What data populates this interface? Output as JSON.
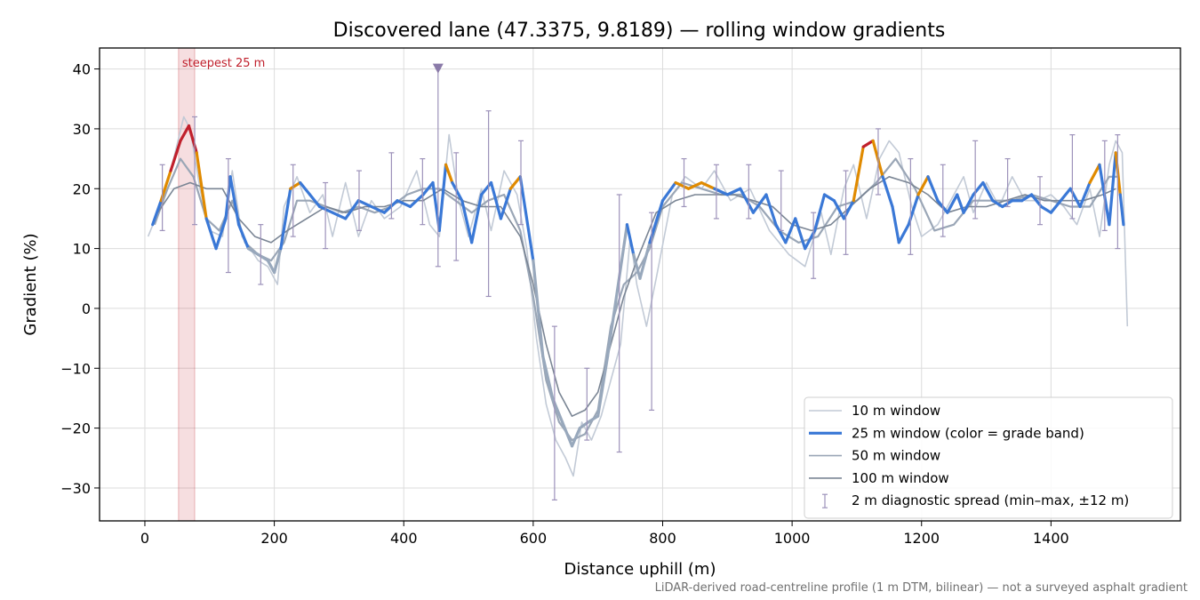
{
  "chart_data": {
    "type": "line",
    "title": "Discovered lane (47.3375, 9.8189) — rolling window gradients",
    "xlabel": "Distance uphill (m)",
    "ylabel": "Gradient (%)",
    "xlim": [
      -70,
      1600
    ],
    "ylim": [
      -35.5,
      43.5
    ],
    "x_ticks": [
      0,
      200,
      400,
      600,
      800,
      1000,
      1200,
      1400
    ],
    "y_ticks": [
      -30,
      -20,
      -10,
      0,
      10,
      20,
      30,
      40
    ],
    "x_tick_labels": [
      "0",
      "200",
      "400",
      "600",
      "800",
      "1000",
      "1200",
      "1400"
    ],
    "y_tick_labels": [
      "−30",
      "−20",
      "−10",
      "0",
      "10",
      "20",
      "30",
      "40"
    ],
    "grid": true,
    "legend_position": "lower-right",
    "footnote": "LiDAR-derived road-centreline profile (1 m DTM, bilinear) — not a surveyed asphalt gradient",
    "steepest_band": {
      "x_start": 52,
      "x_end": 77,
      "label": "steepest 25 m",
      "color": "#c0202c"
    },
    "peak_marker": {
      "x": 453,
      "y": 40
    },
    "grade_band_colors": {
      "below_10": "#98a8bc",
      "10_to_20": "#3a78d6",
      "20_to_25": "#e08a00",
      "above_25": "#c0202c"
    },
    "legend": [
      {
        "label": "10 m window",
        "color": "#c2cad6",
        "kind": "line"
      },
      {
        "label": "25 m window (color = grade band)",
        "color": "#3a78d6",
        "kind": "thick-line"
      },
      {
        "label": "50 m window",
        "color": "#9aa6b6",
        "kind": "line"
      },
      {
        "label": "100 m window",
        "color": "#7a8594",
        "kind": "line"
      },
      {
        "label": "2 m diagnostic spread (min–max, ±12 m)",
        "color": "#9d92ba",
        "kind": "errorbar"
      }
    ],
    "series": [
      {
        "name": "10 m window",
        "color": "#c2cad6",
        "x": [
          5,
          20,
          40,
          60,
          70,
          85,
          100,
          120,
          135,
          150,
          175,
          190,
          205,
          215,
          235,
          255,
          275,
          290,
          310,
          330,
          350,
          370,
          395,
          420,
          440,
          455,
          470,
          485,
          500,
          520,
          535,
          555,
          575,
          590,
          605,
          620,
          635,
          650,
          662,
          675,
          690,
          705,
          720,
          735,
          750,
          760,
          775,
          790,
          815,
          835,
          860,
          880,
          905,
          935,
          965,
          995,
          1020,
          1045,
          1060,
          1080,
          1095,
          1115,
          1135,
          1150,
          1165,
          1185,
          1200,
          1225,
          1245,
          1265,
          1280,
          1300,
          1320,
          1340,
          1360,
          1380,
          1400,
          1420,
          1440,
          1460,
          1475,
          1490,
          1500,
          1510,
          1518
        ],
        "y": [
          12,
          16,
          23,
          32,
          30,
          20,
          13,
          12,
          23,
          12,
          8,
          7,
          4,
          17,
          22,
          16,
          19,
          12,
          21,
          12,
          18,
          15,
          17,
          23,
          14,
          12,
          29,
          18,
          12,
          20,
          13,
          23,
          19,
          10,
          -5,
          -16,
          -22,
          -25,
          -28,
          -19,
          -22,
          -18,
          -12,
          -6,
          12,
          4,
          -3,
          5,
          19,
          22,
          20,
          23,
          18,
          20,
          13,
          9,
          7,
          16,
          9,
          20,
          24,
          15,
          25,
          28,
          26,
          17,
          12,
          14,
          18,
          22,
          16,
          21,
          17,
          22,
          18,
          18,
          19,
          17,
          14,
          20,
          12,
          24,
          28,
          26,
          -3
        ]
      },
      {
        "name": "25 m window (color = grade band)",
        "color": "#3a78d6",
        "x": [
          12,
          25,
          40,
          55,
          68,
          80,
          95,
          110,
          125,
          132,
          145,
          160,
          175,
          190,
          200,
          210,
          225,
          240,
          255,
          270,
          290,
          310,
          330,
          350,
          370,
          390,
          410,
          430,
          445,
          455,
          465,
          475,
          490,
          505,
          520,
          535,
          550,
          565,
          580,
          600,
          615,
          630,
          645,
          660,
          672,
          685,
          700,
          715,
          730,
          745,
          755,
          765,
          780,
          800,
          820,
          840,
          860,
          880,
          900,
          920,
          940,
          960,
          975,
          990,
          1005,
          1020,
          1035,
          1050,
          1065,
          1080,
          1095,
          1110,
          1125,
          1140,
          1155,
          1165,
          1180,
          1195,
          1210,
          1225,
          1240,
          1255,
          1265,
          1280,
          1295,
          1310,
          1325,
          1340,
          1355,
          1370,
          1385,
          1400,
          1415,
          1430,
          1445,
          1460,
          1475,
          1490,
          1500,
          1507,
          1512
        ],
        "y": [
          14,
          18,
          23,
          28,
          30.5,
          26,
          15,
          10,
          15,
          22,
          14,
          10,
          9,
          8,
          6,
          10,
          20,
          21,
          19,
          17,
          16,
          15,
          18,
          17,
          16,
          18,
          17,
          19,
          21,
          13,
          24,
          21,
          18,
          11,
          19,
          21,
          15,
          20,
          22,
          8,
          -8,
          -15,
          -19,
          -23,
          -20,
          -19,
          -18,
          -8,
          3,
          14,
          9,
          5,
          11,
          18,
          21,
          20,
          21,
          20,
          19,
          20,
          16,
          19,
          14,
          11,
          15,
          10,
          13,
          19,
          18,
          15,
          18,
          27,
          28,
          22,
          17,
          11,
          14,
          19,
          22,
          18,
          16,
          19,
          16,
          19,
          21,
          18,
          17,
          18,
          18,
          19,
          17,
          16,
          18,
          20,
          17,
          21,
          24,
          14,
          26,
          19,
          14
        ]
      },
      {
        "name": "50 m window",
        "color": "#9aa6b6",
        "x": [
          15,
          35,
          55,
          75,
          95,
          115,
          135,
          155,
          175,
          195,
          215,
          235,
          255,
          280,
          305,
          330,
          355,
          380,
          405,
          430,
          455,
          480,
          505,
          530,
          555,
          580,
          600,
          620,
          640,
          660,
          680,
          700,
          720,
          740,
          760,
          780,
          800,
          830,
          860,
          890,
          920,
          950,
          980,
          1010,
          1040,
          1070,
          1100,
          1130,
          1160,
          1190,
          1220,
          1250,
          1280,
          1310,
          1340,
          1370,
          1400,
          1430,
          1460,
          1490,
          1505
        ],
        "y": [
          14,
          20,
          25,
          22,
          15,
          13,
          18,
          11,
          9,
          8,
          11,
          18,
          18,
          17,
          16,
          17,
          16,
          17,
          19,
          20,
          20,
          18,
          16,
          18,
          19,
          13,
          2,
          -12,
          -19,
          -22,
          -21,
          -17,
          -3,
          4,
          6,
          10,
          17,
          21,
          20,
          19,
          19,
          17,
          13,
          11,
          12,
          17,
          18,
          21,
          25,
          20,
          13,
          14,
          18,
          18,
          18,
          19,
          18,
          17,
          17,
          22,
          22
        ]
      },
      {
        "name": "100 m window",
        "color": "#7a8594",
        "x": [
          20,
          45,
          70,
          95,
          120,
          145,
          170,
          195,
          220,
          250,
          280,
          310,
          340,
          370,
          400,
          430,
          460,
          490,
          520,
          550,
          580,
          600,
          620,
          640,
          660,
          680,
          700,
          720,
          740,
          760,
          790,
          820,
          850,
          880,
          910,
          940,
          970,
          1000,
          1030,
          1060,
          1090,
          1120,
          1150,
          1180,
          1210,
          1240,
          1270,
          1300,
          1330,
          1360,
          1390,
          1420,
          1450,
          1480,
          1500
        ],
        "y": [
          16,
          20,
          21,
          20,
          20,
          15,
          12,
          11,
          13,
          15,
          17,
          16,
          17,
          17,
          18,
          18,
          20,
          18,
          17,
          17,
          12,
          4,
          -6,
          -14,
          -18,
          -17,
          -14,
          -6,
          2,
          8,
          16,
          18,
          19,
          19,
          19,
          18,
          17,
          14,
          13,
          14,
          17,
          20,
          22,
          21,
          19,
          16,
          17,
          17,
          18,
          19,
          18,
          18,
          18,
          19,
          20
        ]
      }
    ],
    "error_bars": [
      {
        "x": 27,
        "min": 13,
        "max": 24
      },
      {
        "x": 77,
        "min": 14,
        "max": 32
      },
      {
        "x": 129,
        "min": 6,
        "max": 25
      },
      {
        "x": 179,
        "min": 4,
        "max": 14
      },
      {
        "x": 229,
        "min": 12,
        "max": 24
      },
      {
        "x": 279,
        "min": 10,
        "max": 21
      },
      {
        "x": 331,
        "min": 13,
        "max": 23
      },
      {
        "x": 381,
        "min": 15,
        "max": 26
      },
      {
        "x": 429,
        "min": 14,
        "max": 25
      },
      {
        "x": 453,
        "min": 7,
        "max": 40
      },
      {
        "x": 481,
        "min": 8,
        "max": 26
      },
      {
        "x": 531,
        "min": 2,
        "max": 33
      },
      {
        "x": 581,
        "min": 14,
        "max": 28
      },
      {
        "x": 633,
        "min": -32,
        "max": -3
      },
      {
        "x": 683,
        "min": -22,
        "max": -10
      },
      {
        "x": 733,
        "min": -24,
        "max": 19
      },
      {
        "x": 783,
        "min": -17,
        "max": 16
      },
      {
        "x": 833,
        "min": 17,
        "max": 25
      },
      {
        "x": 883,
        "min": 15,
        "max": 24
      },
      {
        "x": 933,
        "min": 15,
        "max": 24
      },
      {
        "x": 983,
        "min": 13,
        "max": 23
      },
      {
        "x": 1033,
        "min": 5,
        "max": 16
      },
      {
        "x": 1083,
        "min": 9,
        "max": 23
      },
      {
        "x": 1133,
        "min": 19,
        "max": 30
      },
      {
        "x": 1183,
        "min": 9,
        "max": 25
      },
      {
        "x": 1233,
        "min": 12,
        "max": 24
      },
      {
        "x": 1283,
        "min": 15,
        "max": 28
      },
      {
        "x": 1333,
        "min": 17,
        "max": 25
      },
      {
        "x": 1383,
        "min": 14,
        "max": 22
      },
      {
        "x": 1433,
        "min": 15,
        "max": 29
      },
      {
        "x": 1483,
        "min": 13,
        "max": 28
      },
      {
        "x": 1503,
        "min": 10,
        "max": 29
      }
    ]
  }
}
